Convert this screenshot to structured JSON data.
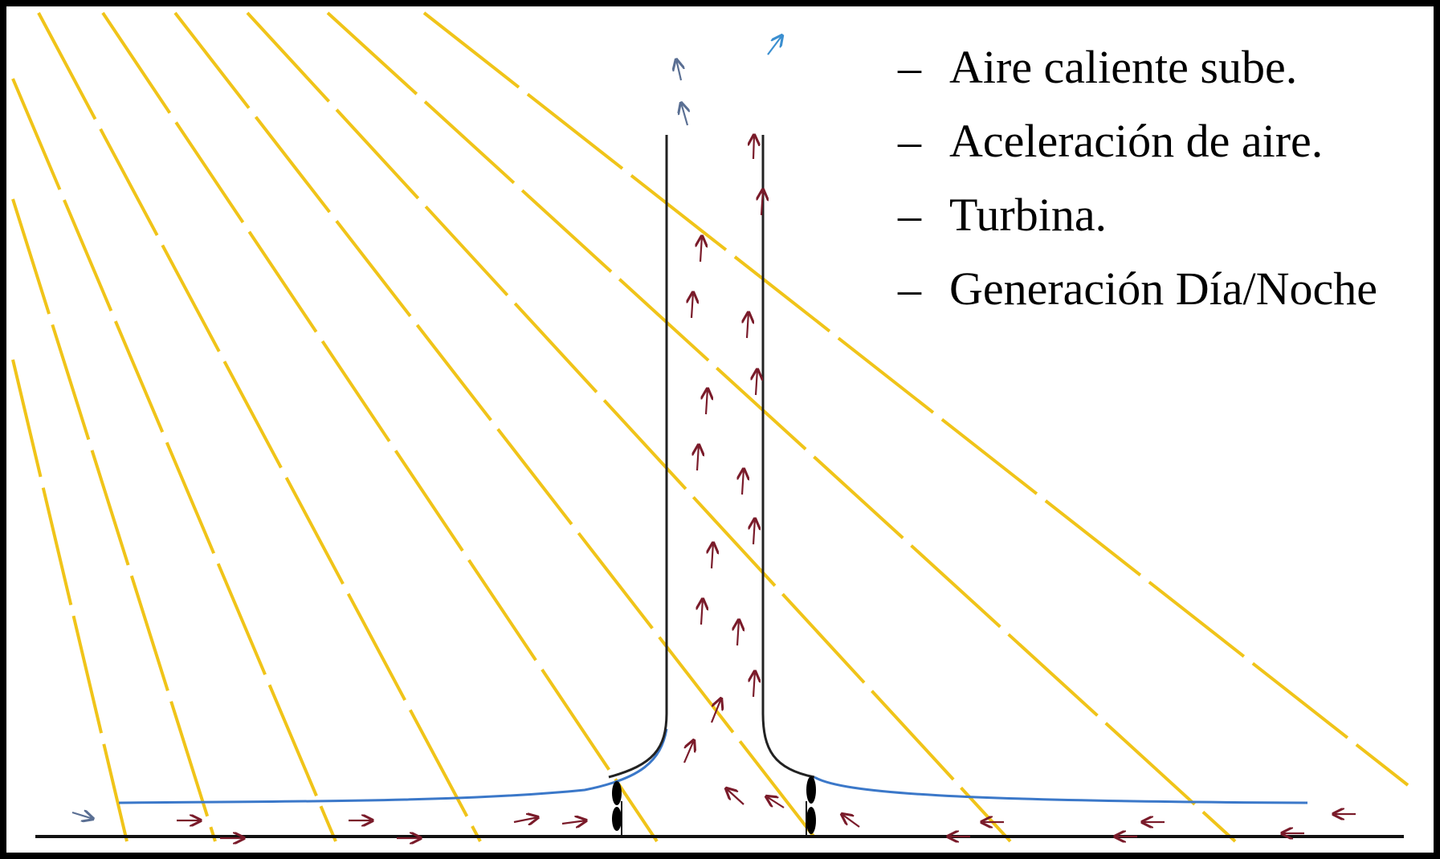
{
  "legend": {
    "items": [
      "Aire caliente sube.",
      "Aceleración de aire.",
      "Turbina.",
      "Generación Día/Noche"
    ],
    "bullet": "–"
  },
  "colors": {
    "background": "#000000",
    "canvas": "#ffffff",
    "sun_rays": "#f0c419",
    "chimney": "#222222",
    "collector_roof": "#3b78c9",
    "air_flow_arrows": "#7a1b2a",
    "exhaust_arrows": "#5a6f93",
    "ground": "#111111",
    "turbine": "#000000"
  },
  "icons": {
    "turbine": "turbine-icon",
    "air_flow": "arrow-icon"
  }
}
